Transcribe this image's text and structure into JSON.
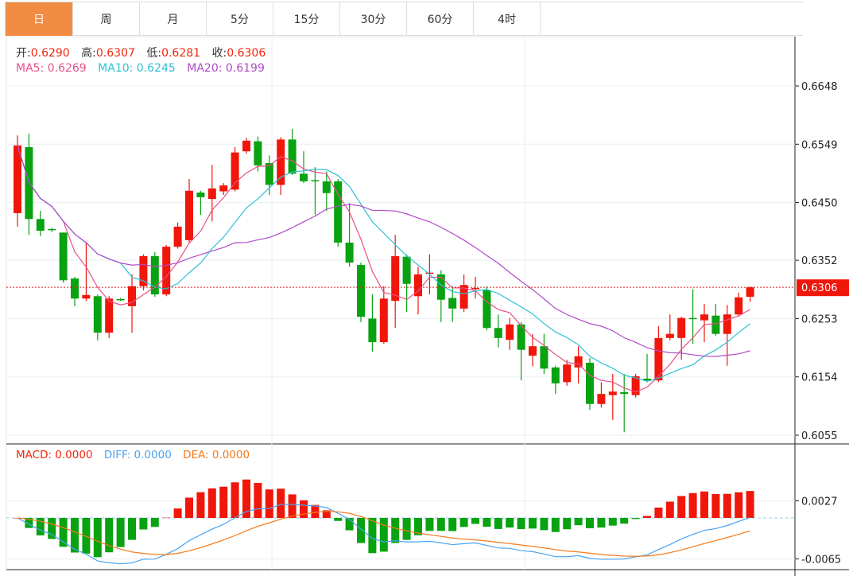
{
  "tabs": [
    "日",
    "周",
    "月",
    "5分",
    "15分",
    "30分",
    "60分",
    "4时"
  ],
  "active_tab": 0,
  "ohlc_legend": {
    "open_label": "开:",
    "open": "0.6290",
    "high_label": "高:",
    "high": "0.6307",
    "low_label": "低:",
    "low": "0.6281",
    "close_label": "收:",
    "close": "0.6306"
  },
  "ma_legend": {
    "ma5": "MA5: 0.6269",
    "ma10": "MA10: 0.6245",
    "ma20": "MA20: 0.6199"
  },
  "macd_legend": {
    "macd": "MACD: 0.0000",
    "diff": "DIFF: 0.0000",
    "dea": "DEA: 0.0000"
  },
  "price_axis": {
    "ticks": [
      "0.6648",
      "0.6549",
      "0.6450",
      "0.6352",
      "0.6253",
      "0.6154",
      "0.6055"
    ],
    "current": "0.6306"
  },
  "macd_axis": {
    "ticks": [
      "0.0027",
      "-0.0065"
    ]
  },
  "colors": {
    "up": "#f0160a",
    "down": "#09a211",
    "ma5": "#e8508a",
    "ma10": "#2fc0d8",
    "ma20": "#b04ac8",
    "diff": "#4aa3f0",
    "dea": "#f57a1a",
    "accent": "#f28c42"
  },
  "chart_data": {
    "type": "candlestick",
    "price_range": [
      0.604,
      0.67
    ],
    "macd_range": [
      -0.0075,
      0.005
    ],
    "candles": [
      [
        0.6432,
        0.6564,
        0.6409,
        0.6547
      ],
      [
        0.6544,
        0.6567,
        0.6395,
        0.6422
      ],
      [
        0.6422,
        0.6436,
        0.6393,
        0.6402
      ],
      [
        0.6405,
        0.6407,
        0.64,
        0.6403
      ],
      [
        0.6399,
        0.6399,
        0.6314,
        0.6318
      ],
      [
        0.6321,
        0.6324,
        0.6274,
        0.6287
      ],
      [
        0.6287,
        0.6382,
        0.6283,
        0.6293
      ],
      [
        0.6291,
        0.6294,
        0.6216,
        0.6229
      ],
      [
        0.6229,
        0.6291,
        0.622,
        0.6287
      ],
      [
        0.6286,
        0.6288,
        0.6283,
        0.6285
      ],
      [
        0.6274,
        0.6328,
        0.6229,
        0.6308
      ],
      [
        0.6308,
        0.6362,
        0.6301,
        0.6359
      ],
      [
        0.6359,
        0.6366,
        0.629,
        0.6294
      ],
      [
        0.6294,
        0.6378,
        0.6291,
        0.6375
      ],
      [
        0.6375,
        0.6416,
        0.6372,
        0.6409
      ],
      [
        0.6386,
        0.649,
        0.6382,
        0.647
      ],
      [
        0.6467,
        0.647,
        0.6429,
        0.6459
      ],
      [
        0.6456,
        0.6514,
        0.6418,
        0.6474
      ],
      [
        0.6469,
        0.6483,
        0.6463,
        0.6479
      ],
      [
        0.6472,
        0.6544,
        0.6469,
        0.6535
      ],
      [
        0.6537,
        0.656,
        0.6533,
        0.6555
      ],
      [
        0.6554,
        0.6562,
        0.6503,
        0.6513
      ],
      [
        0.6517,
        0.653,
        0.6463,
        0.648
      ],
      [
        0.648,
        0.6561,
        0.6463,
        0.6557
      ],
      [
        0.6557,
        0.6575,
        0.6497,
        0.6499
      ],
      [
        0.6499,
        0.6537,
        0.6483,
        0.6486
      ],
      [
        0.6488,
        0.651,
        0.6429,
        0.6487
      ],
      [
        0.6486,
        0.6503,
        0.6436,
        0.6466
      ],
      [
        0.6486,
        0.649,
        0.6375,
        0.6382
      ],
      [
        0.6382,
        0.6449,
        0.6341,
        0.6348
      ],
      [
        0.6344,
        0.6348,
        0.6247,
        0.6256
      ],
      [
        0.6253,
        0.6294,
        0.6197,
        0.6213
      ],
      [
        0.6213,
        0.6308,
        0.621,
        0.6287
      ],
      [
        0.6283,
        0.6395,
        0.6237,
        0.6359
      ],
      [
        0.6358,
        0.6362,
        0.6264,
        0.6312
      ],
      [
        0.6291,
        0.6341,
        0.626,
        0.6328
      ],
      [
        0.633,
        0.6362,
        0.6294,
        0.6331
      ],
      [
        0.6328,
        0.6335,
        0.6247,
        0.6285
      ],
      [
        0.6288,
        0.6308,
        0.6247,
        0.627
      ],
      [
        0.627,
        0.6328,
        0.6264,
        0.631
      ],
      [
        0.6305,
        0.6324,
        0.6287,
        0.6305
      ],
      [
        0.6301,
        0.6308,
        0.6233,
        0.6237
      ],
      [
        0.6237,
        0.626,
        0.6204,
        0.622
      ],
      [
        0.6217,
        0.6254,
        0.62,
        0.6243
      ],
      [
        0.6243,
        0.6247,
        0.6148,
        0.62
      ],
      [
        0.619,
        0.6227,
        0.6172,
        0.6206
      ],
      [
        0.6206,
        0.6227,
        0.6159,
        0.6168
      ],
      [
        0.617,
        0.6173,
        0.6125,
        0.6143
      ],
      [
        0.6145,
        0.6183,
        0.6139,
        0.6175
      ],
      [
        0.617,
        0.6206,
        0.6143,
        0.6189
      ],
      [
        0.6178,
        0.6186,
        0.6098,
        0.6108
      ],
      [
        0.6108,
        0.6145,
        0.6102,
        0.6125
      ],
      [
        0.6123,
        0.6159,
        0.6081,
        0.6129
      ],
      [
        0.6128,
        0.6159,
        0.606,
        0.6125
      ],
      [
        0.6123,
        0.6159,
        0.6119,
        0.6155
      ],
      [
        0.6151,
        0.6193,
        0.6145,
        0.6148
      ],
      [
        0.6148,
        0.624,
        0.6145,
        0.622
      ],
      [
        0.622,
        0.626,
        0.6216,
        0.6227
      ],
      [
        0.622,
        0.6256,
        0.6183,
        0.6254
      ],
      [
        0.6254,
        0.6303,
        0.621,
        0.6253
      ],
      [
        0.625,
        0.6278,
        0.6213,
        0.626
      ],
      [
        0.6258,
        0.6278,
        0.6224,
        0.6227
      ],
      [
        0.6227,
        0.6276,
        0.6173,
        0.626
      ],
      [
        0.626,
        0.6297,
        0.6256,
        0.6289
      ],
      [
        0.629,
        0.6307,
        0.6281,
        0.6306
      ]
    ]
  }
}
